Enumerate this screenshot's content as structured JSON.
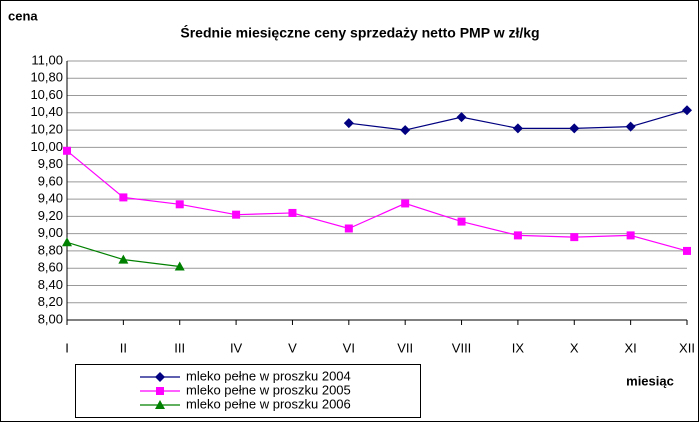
{
  "chart_data": {
    "type": "line",
    "title": "Średnie miesięczne ceny sprzedaży netto PMP w zł/kg",
    "y_label": "cena",
    "x_label": "miesiąc",
    "categories": [
      "I",
      "II",
      "III",
      "IV",
      "V",
      "VI",
      "VII",
      "VIII",
      "IX",
      "X",
      "XI",
      "XII"
    ],
    "series": [
      {
        "name": "mleko pełne w proszku 2004",
        "color": "#000080",
        "marker": "diamond",
        "values": [
          null,
          null,
          null,
          null,
          null,
          10.28,
          10.2,
          10.35,
          10.22,
          10.22,
          10.24,
          10.43
        ]
      },
      {
        "name": "mleko pełne w proszku 2005",
        "color": "#ff00ff",
        "marker": "square",
        "values": [
          9.96,
          9.42,
          9.34,
          9.22,
          9.24,
          9.06,
          9.35,
          9.14,
          8.98,
          8.96,
          8.98,
          8.8
        ]
      },
      {
        "name": "mleko pełne w proszku 2006",
        "color": "#008000",
        "marker": "triangle",
        "values": [
          8.9,
          8.7,
          8.62,
          null,
          null,
          null,
          null,
          null,
          null,
          null,
          null,
          null
        ]
      }
    ],
    "ylim": [
      8,
      11
    ],
    "yticks": [
      {
        "value": 8,
        "label": "8,00"
      },
      {
        "value": 8.2,
        "label": "8,20"
      },
      {
        "value": 8.4,
        "label": "8,40"
      },
      {
        "value": 8.6,
        "label": "8,60"
      },
      {
        "value": 8.8,
        "label": "8,80"
      },
      {
        "value": 9,
        "label": "9,00"
      },
      {
        "value": 9.2,
        "label": "9,20"
      },
      {
        "value": 9.4,
        "label": "9,40"
      },
      {
        "value": 9.6,
        "label": "9,60"
      },
      {
        "value": 9.8,
        "label": "9,80"
      },
      {
        "value": 10,
        "label": "10,00"
      },
      {
        "value": 10.2,
        "label": "10,20"
      },
      {
        "value": 10.4,
        "label": "10,40"
      },
      {
        "value": 10.6,
        "label": "10,60"
      },
      {
        "value": 10.8,
        "label": "10,80"
      },
      {
        "value": 11,
        "label": "11,00"
      }
    ],
    "grid": true
  }
}
